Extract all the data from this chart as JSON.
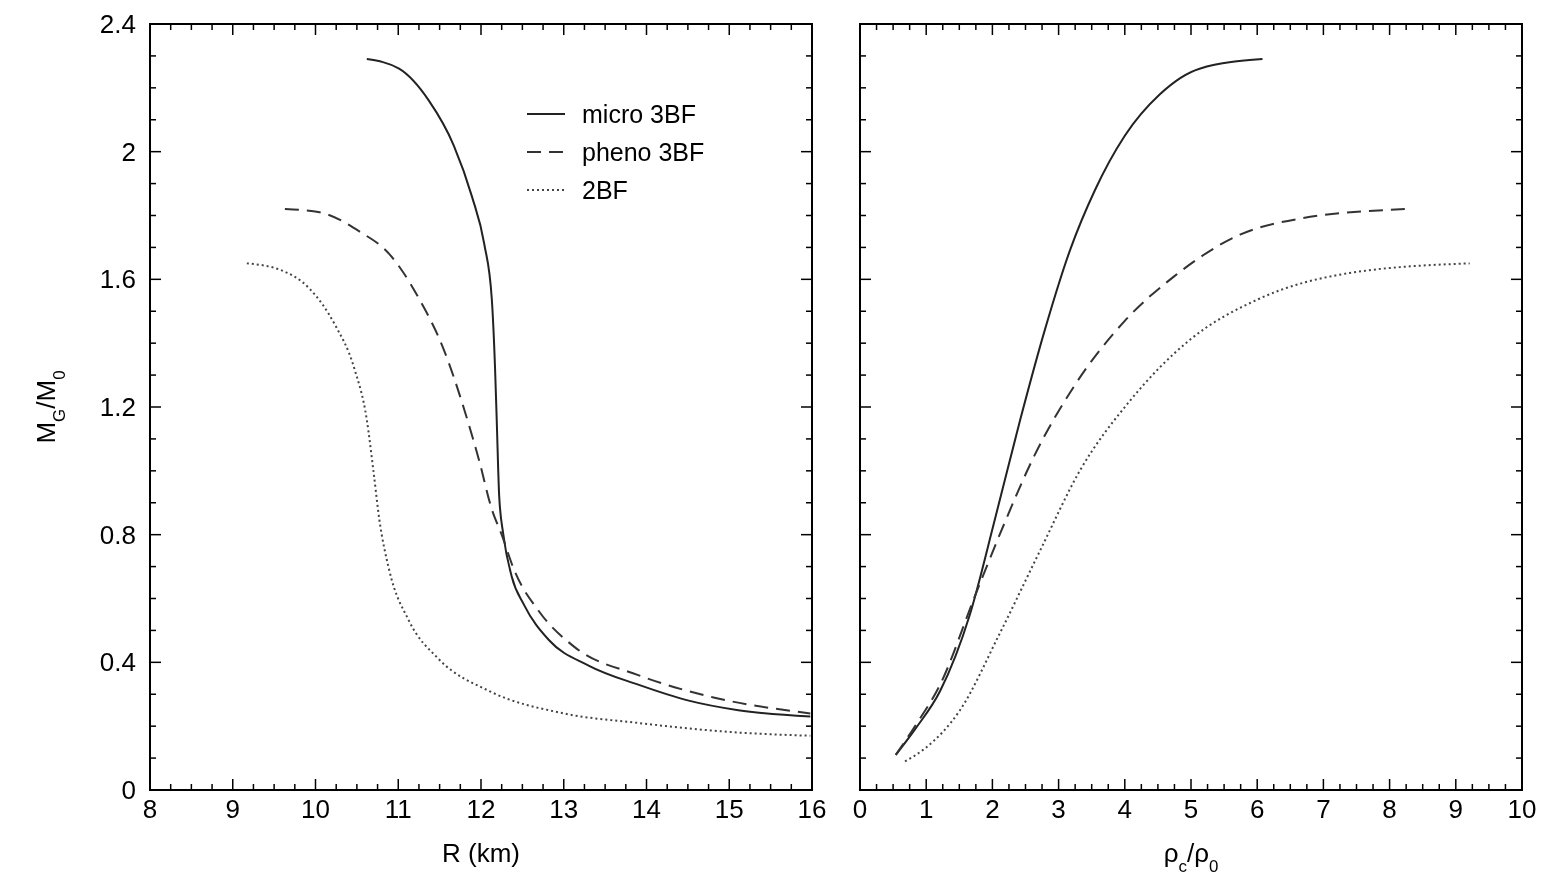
{
  "chart_data": [
    {
      "type": "line",
      "xlabel": "R (km)",
      "ylabel": "M$_{G}$/M$_{0}$",
      "legend": "top right",
      "xlim": [
        8,
        16
      ],
      "ylim": [
        0,
        2.4
      ],
      "xticks": [
        8,
        {
          "value": 8.25,
          "label": null
        },
        {
          "value": 8.5,
          "label": null
        },
        {
          "value": 8.75,
          "label": null
        },
        9,
        {
          "value": 9.25,
          "label": null
        },
        {
          "value": 9.5,
          "label": null
        },
        {
          "value": 9.75,
          "label": null
        },
        10,
        {
          "value": 10.25,
          "label": null
        },
        {
          "value": 10.5,
          "label": null
        },
        {
          "value": 10.75,
          "label": null
        },
        11,
        {
          "value": 11.25,
          "label": null
        },
        {
          "value": 11.5,
          "label": null
        },
        {
          "value": 11.75,
          "label": null
        },
        12,
        {
          "value": 12.25,
          "label": null
        },
        {
          "value": 12.5,
          "label": null
        },
        {
          "value": 12.75,
          "label": null
        },
        13,
        {
          "value": 13.25,
          "label": null
        },
        {
          "value": 13.5,
          "label": null
        },
        {
          "value": 13.75,
          "label": null
        },
        14,
        {
          "value": 14.25,
          "label": null
        },
        {
          "value": 14.5,
          "label": null
        },
        {
          "value": 14.75,
          "label": null
        },
        15,
        {
          "value": 15.25,
          "label": null
        },
        {
          "value": 15.5,
          "label": null
        },
        {
          "value": 15.75,
          "label": null
        },
        16
      ],
      "yticks": [
        0,
        {
          "value": 0.1,
          "label": null
        },
        {
          "value": 0.2,
          "label": null
        },
        {
          "value": 0.3,
          "label": null
        },
        0.4,
        {
          "value": 0.5,
          "label": null
        },
        {
          "value": 0.6,
          "label": null
        },
        {
          "value": 0.7,
          "label": null
        },
        0.8,
        {
          "value": 0.9,
          "label": null
        },
        {
          "value": 1.0,
          "label": null
        },
        {
          "value": 1.1,
          "label": null
        },
        1.2,
        {
          "value": 1.3,
          "label": null
        },
        {
          "value": 1.4,
          "label": null
        },
        {
          "value": 1.5,
          "label": null
        },
        1.6,
        {
          "value": 1.7,
          "label": null
        },
        {
          "value": 1.8,
          "label": null
        },
        {
          "value": 1.9,
          "label": null
        },
        2,
        {
          "value": 2.1,
          "label": null
        },
        {
          "value": 2.2,
          "label": null
        },
        {
          "value": 2.3,
          "label": null
        },
        2.4
      ],
      "series": [
        {
          "name": "micro 3BF",
          "color": "#222222",
          "line_style": "solid",
          "x": [
            10.62,
            11.01,
            11.37,
            11.67,
            11.89,
            12.04,
            12.13,
            12.17,
            12.19,
            12.22,
            12.27,
            12.37,
            12.52,
            12.82,
            13.3,
            13.9,
            14.51,
            15.11,
            15.98
          ],
          "values": [
            2.29,
            2.26,
            2.16,
            2.02,
            1.86,
            1.71,
            1.54,
            1.32,
            1.16,
            0.92,
            0.8,
            0.67,
            0.58,
            0.47,
            0.39,
            0.33,
            0.28,
            0.25,
            0.23
          ]
        },
        {
          "name": "pheno 3BF",
          "color": "#333333",
          "line_style": "dashed",
          "x": [
            9.63,
            10.05,
            10.53,
            10.89,
            11.25,
            11.55,
            11.8,
            11.98,
            12.13,
            12.25,
            12.4,
            12.7,
            13.12,
            13.9,
            14.81,
            15.98
          ],
          "values": [
            1.82,
            1.81,
            1.75,
            1.68,
            1.54,
            1.38,
            1.19,
            1.03,
            0.88,
            0.8,
            0.69,
            0.56,
            0.45,
            0.36,
            0.29,
            0.24
          ]
        },
        {
          "name": "2BF",
          "color": "#444444",
          "line_style": "dotted",
          "x": [
            9.17,
            9.57,
            9.93,
            10.23,
            10.47,
            10.62,
            10.7,
            10.77,
            10.89,
            11.13,
            11.49,
            12.1,
            13.0,
            13.9,
            15.11,
            15.98
          ],
          "values": [
            1.65,
            1.63,
            1.57,
            1.46,
            1.32,
            1.16,
            1.0,
            0.85,
            0.69,
            0.53,
            0.41,
            0.31,
            0.24,
            0.21,
            0.18,
            0.17
          ]
        }
      ]
    },
    {
      "type": "line",
      "xlabel": "ρ$_{c}$/ρ$_{0}$",
      "tick_labels": "x",
      "xlim": [
        0,
        10
      ],
      "ylim": [
        0,
        2.4
      ],
      "xticks": [
        0,
        {
          "value": 0.25,
          "label": null
        },
        {
          "value": 0.5,
          "label": null
        },
        {
          "value": 0.75,
          "label": null
        },
        1,
        {
          "value": 1.25,
          "label": null
        },
        {
          "value": 1.5,
          "label": null
        },
        {
          "value": 1.75,
          "label": null
        },
        2,
        {
          "value": 2.25,
          "label": null
        },
        {
          "value": 2.5,
          "label": null
        },
        {
          "value": 2.75,
          "label": null
        },
        3,
        {
          "value": 3.25,
          "label": null
        },
        {
          "value": 3.5,
          "label": null
        },
        {
          "value": 3.75,
          "label": null
        },
        4,
        {
          "value": 4.25,
          "label": null
        },
        {
          "value": 4.5,
          "label": null
        },
        {
          "value": 4.75,
          "label": null
        },
        5,
        {
          "value": 5.25,
          "label": null
        },
        {
          "value": 5.5,
          "label": null
        },
        {
          "value": 5.75,
          "label": null
        },
        6,
        {
          "value": 6.25,
          "label": null
        },
        {
          "value": 6.5,
          "label": null
        },
        {
          "value": 6.75,
          "label": null
        },
        7,
        {
          "value": 7.25,
          "label": null
        },
        {
          "value": 7.5,
          "label": null
        },
        {
          "value": 7.75,
          "label": null
        },
        8,
        {
          "value": 8.25,
          "label": null
        },
        {
          "value": 8.5,
          "label": null
        },
        {
          "value": 8.75,
          "label": null
        },
        9,
        {
          "value": 9.25,
          "label": null
        },
        {
          "value": 9.5,
          "label": null
        },
        {
          "value": 9.75,
          "label": null
        },
        10
      ],
      "yticks": [
        0,
        {
          "value": 0.1,
          "label": null
        },
        {
          "value": 0.2,
          "label": null
        },
        {
          "value": 0.3,
          "label": null
        },
        0.4,
        {
          "value": 0.5,
          "label": null
        },
        {
          "value": 0.6,
          "label": null
        },
        {
          "value": 0.7,
          "label": null
        },
        0.8,
        {
          "value": 0.9,
          "label": null
        },
        {
          "value": 1.0,
          "label": null
        },
        {
          "value": 1.1,
          "label": null
        },
        1.2,
        {
          "value": 1.3,
          "label": null
        },
        {
          "value": 1.4,
          "label": null
        },
        {
          "value": 1.5,
          "label": null
        },
        1.6,
        {
          "value": 1.7,
          "label": null
        },
        {
          "value": 1.8,
          "label": null
        },
        {
          "value": 1.9,
          "label": null
        },
        2,
        {
          "value": 2.1,
          "label": null
        },
        {
          "value": 2.2,
          "label": null
        },
        {
          "value": 2.3,
          "label": null
        },
        2.4
      ],
      "series": [
        {
          "color": "#222222",
          "line_style": "solid",
          "x": [
            0.54,
            0.83,
            1.21,
            1.66,
            2.04,
            2.42,
            2.79,
            3.17,
            3.55,
            4.0,
            4.53,
            5.13,
            6.08
          ],
          "values": [
            0.11,
            0.19,
            0.31,
            0.55,
            0.85,
            1.16,
            1.44,
            1.69,
            1.88,
            2.05,
            2.18,
            2.26,
            2.29
          ]
        },
        {
          "color": "#333333",
          "line_style": "dashed",
          "x": [
            0.54,
            0.83,
            1.21,
            1.74,
            2.11,
            2.64,
            3.25,
            4.0,
            4.75,
            5.74,
            6.64,
            8.23
          ],
          "values": [
            0.11,
            0.2,
            0.33,
            0.61,
            0.8,
            1.05,
            1.27,
            1.47,
            1.61,
            1.74,
            1.79,
            1.82
          ]
        },
        {
          "color": "#444444",
          "line_style": "dotted",
          "x": [
            0.68,
            0.98,
            1.51,
            2.11,
            2.72,
            3.32,
            4.08,
            4.98,
            6.04,
            7.4,
            9.21
          ],
          "values": [
            0.09,
            0.13,
            0.25,
            0.49,
            0.75,
            1.0,
            1.22,
            1.41,
            1.54,
            1.62,
            1.65
          ]
        }
      ]
    }
  ]
}
